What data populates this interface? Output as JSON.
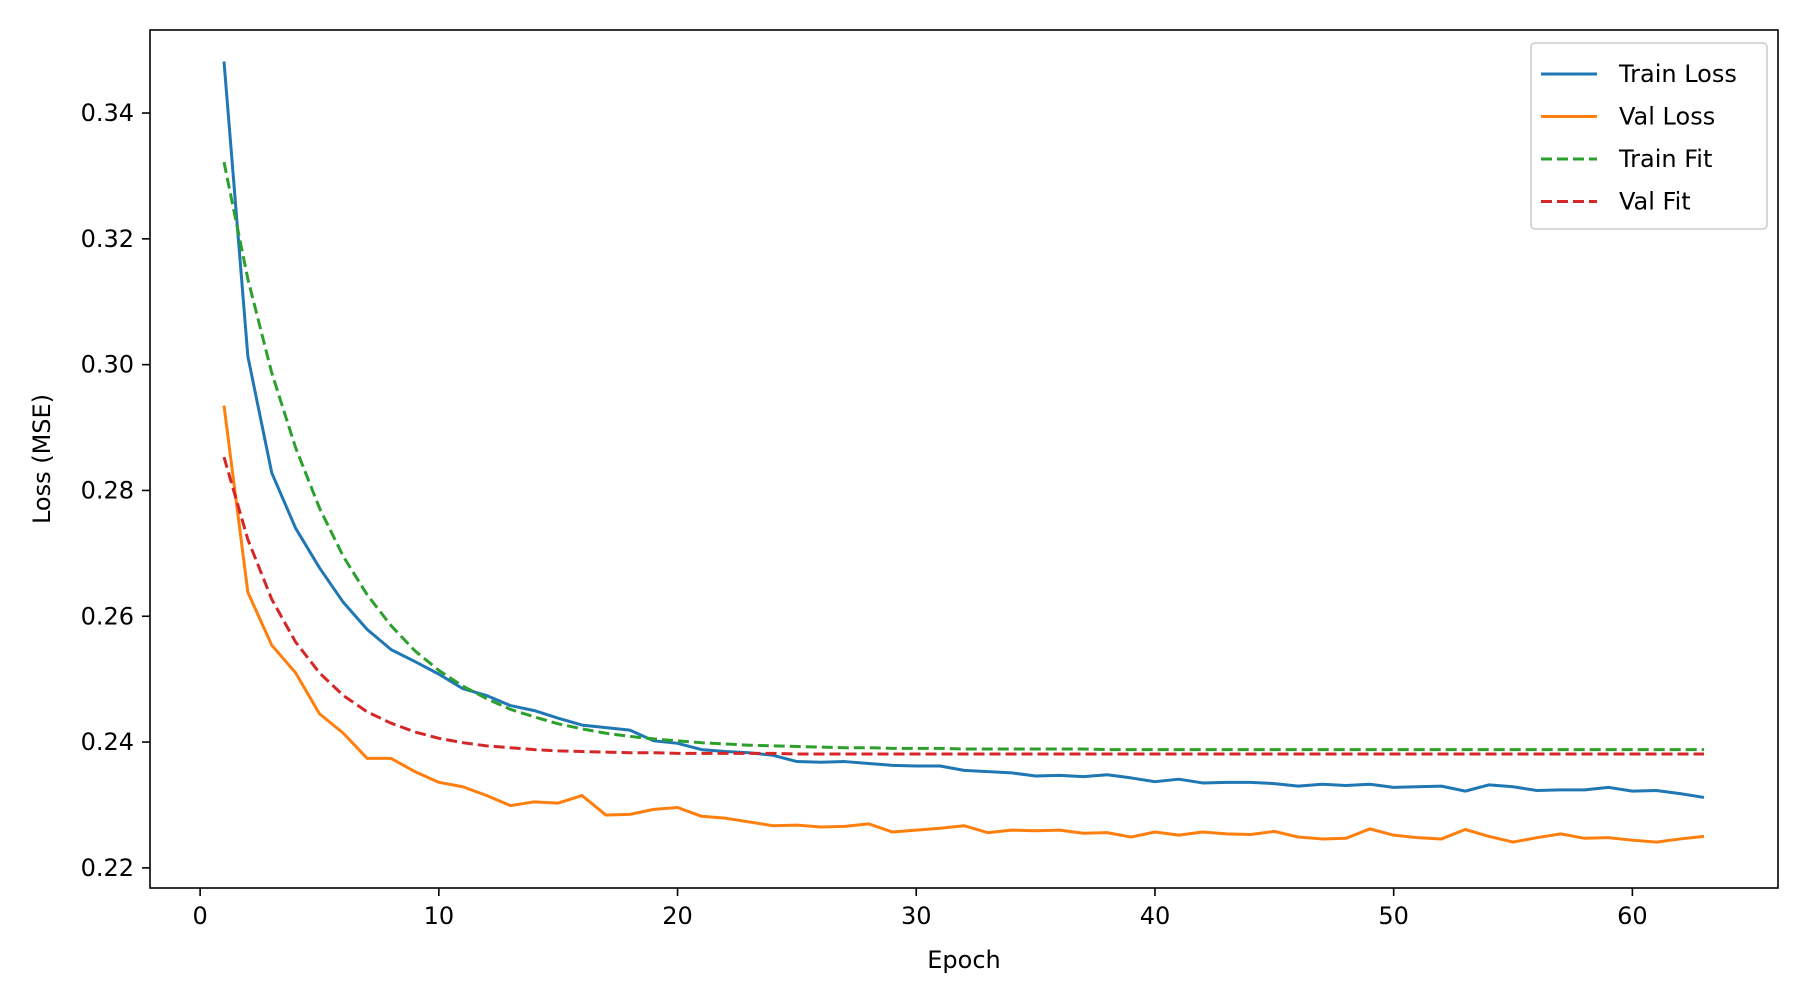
{
  "chart_data": {
    "type": "line",
    "title": "",
    "xlabel": "Epoch",
    "ylabel": "Loss (MSE)",
    "xlim": [
      -2.1,
      66.1
    ],
    "ylim": [
      0.2168,
      0.3532
    ],
    "xticks": [
      0,
      10,
      20,
      30,
      40,
      50,
      60
    ],
    "xtick_labels": [
      "0",
      "10",
      "20",
      "30",
      "40",
      "50",
      "60"
    ],
    "yticks": [
      0.22,
      0.24,
      0.26,
      0.28,
      0.3,
      0.32,
      0.34
    ],
    "ytick_labels": [
      "0.22",
      "0.24",
      "0.26",
      "0.28",
      "0.30",
      "0.32",
      "0.34"
    ],
    "grid": false,
    "legend_position": "top-right",
    "x": [
      1,
      2,
      3,
      4,
      5,
      6,
      7,
      8,
      9,
      10,
      11,
      12,
      13,
      14,
      15,
      16,
      17,
      18,
      19,
      20,
      21,
      22,
      23,
      24,
      25,
      26,
      27,
      28,
      29,
      30,
      31,
      32,
      33,
      34,
      35,
      36,
      37,
      38,
      39,
      40,
      41,
      42,
      43,
      44,
      45,
      46,
      47,
      48,
      49,
      50,
      51,
      52,
      53,
      54,
      55,
      56,
      57,
      58,
      59,
      60,
      61,
      62,
      63
    ],
    "series": [
      {
        "name": "Train Loss",
        "color": "#1f77b4",
        "style": "solid",
        "values": [
          0.3482,
          0.3013,
          0.2828,
          0.274,
          0.2677,
          0.2622,
          0.2579,
          0.2547,
          0.2528,
          0.2508,
          0.2485,
          0.2474,
          0.2458,
          0.245,
          0.2438,
          0.2427,
          0.2423,
          0.2419,
          0.2402,
          0.2398,
          0.2388,
          0.2385,
          0.2383,
          0.2379,
          0.2369,
          0.2368,
          0.2369,
          0.2366,
          0.2363,
          0.2362,
          0.2362,
          0.2355,
          0.2353,
          0.2351,
          0.2346,
          0.2347,
          0.2345,
          0.2348,
          0.2343,
          0.2337,
          0.2341,
          0.2335,
          0.2336,
          0.2336,
          0.2334,
          0.233,
          0.2333,
          0.2331,
          0.2333,
          0.2328,
          0.2329,
          0.233,
          0.2322,
          0.2332,
          0.2329,
          0.2323,
          0.2324,
          0.2324,
          0.2328,
          0.2322,
          0.2323,
          0.2318,
          0.2312
        ]
      },
      {
        "name": "Val Loss",
        "color": "#ff7f0e",
        "style": "solid",
        "values": [
          0.2935,
          0.2638,
          0.2554,
          0.251,
          0.2445,
          0.2414,
          0.2374,
          0.2374,
          0.2353,
          0.2336,
          0.2329,
          0.2315,
          0.2299,
          0.2305,
          0.2303,
          0.2315,
          0.2284,
          0.2285,
          0.2293,
          0.2296,
          0.2282,
          0.2279,
          0.2273,
          0.2267,
          0.2268,
          0.2265,
          0.2266,
          0.227,
          0.2257,
          0.226,
          0.2263,
          0.2267,
          0.2256,
          0.226,
          0.2259,
          0.226,
          0.2255,
          0.2256,
          0.2249,
          0.2257,
          0.2252,
          0.2257,
          0.2254,
          0.2253,
          0.2258,
          0.2249,
          0.2246,
          0.2247,
          0.2262,
          0.2252,
          0.2248,
          0.2246,
          0.2261,
          0.225,
          0.2241,
          0.2248,
          0.2254,
          0.2247,
          0.2248,
          0.2244,
          0.2241,
          0.2246,
          0.225
        ]
      },
      {
        "name": "Train Fit",
        "color": "#2ca02c",
        "style": "dashed",
        "values": [
          0.3322,
          0.3136,
          0.2987,
          0.2868,
          0.2772,
          0.2695,
          0.2634,
          0.2585,
          0.2545,
          0.2514,
          0.2489,
          0.2469,
          0.2452,
          0.244,
          0.2429,
          0.2421,
          0.2414,
          0.2409,
          0.2405,
          0.2402,
          0.2399,
          0.2397,
          0.2395,
          0.2394,
          0.2393,
          0.2392,
          0.2391,
          0.2391,
          0.239,
          0.239,
          0.239,
          0.2389,
          0.2389,
          0.2389,
          0.2389,
          0.2389,
          0.2389,
          0.2388,
          0.2388,
          0.2388,
          0.2388,
          0.2388,
          0.2388,
          0.2388,
          0.2388,
          0.2388,
          0.2388,
          0.2388,
          0.2388,
          0.2388,
          0.2388,
          0.2388,
          0.2388,
          0.2388,
          0.2388,
          0.2388,
          0.2388,
          0.2388,
          0.2388,
          0.2388,
          0.2388,
          0.2388,
          0.2388
        ]
      },
      {
        "name": "Val Fit",
        "color": "#d62728",
        "style": "dashed",
        "values": [
          0.2853,
          0.2722,
          0.2627,
          0.2559,
          0.251,
          0.2474,
          0.2448,
          0.243,
          0.2416,
          0.2406,
          0.2399,
          0.2394,
          0.2391,
          0.2388,
          0.2386,
          0.2385,
          0.2384,
          0.2383,
          0.2383,
          0.2382,
          0.2382,
          0.2382,
          0.2382,
          0.2382,
          0.2381,
          0.2381,
          0.2381,
          0.2381,
          0.2381,
          0.2381,
          0.2381,
          0.2381,
          0.2381,
          0.2381,
          0.2381,
          0.2381,
          0.2381,
          0.2381,
          0.2381,
          0.2381,
          0.2381,
          0.2381,
          0.2381,
          0.2381,
          0.2381,
          0.2381,
          0.2381,
          0.2381,
          0.2381,
          0.2381,
          0.2381,
          0.2381,
          0.2381,
          0.2381,
          0.2381,
          0.2381,
          0.2381,
          0.2381,
          0.2381,
          0.2381,
          0.2381,
          0.2381,
          0.2381
        ]
      }
    ]
  }
}
